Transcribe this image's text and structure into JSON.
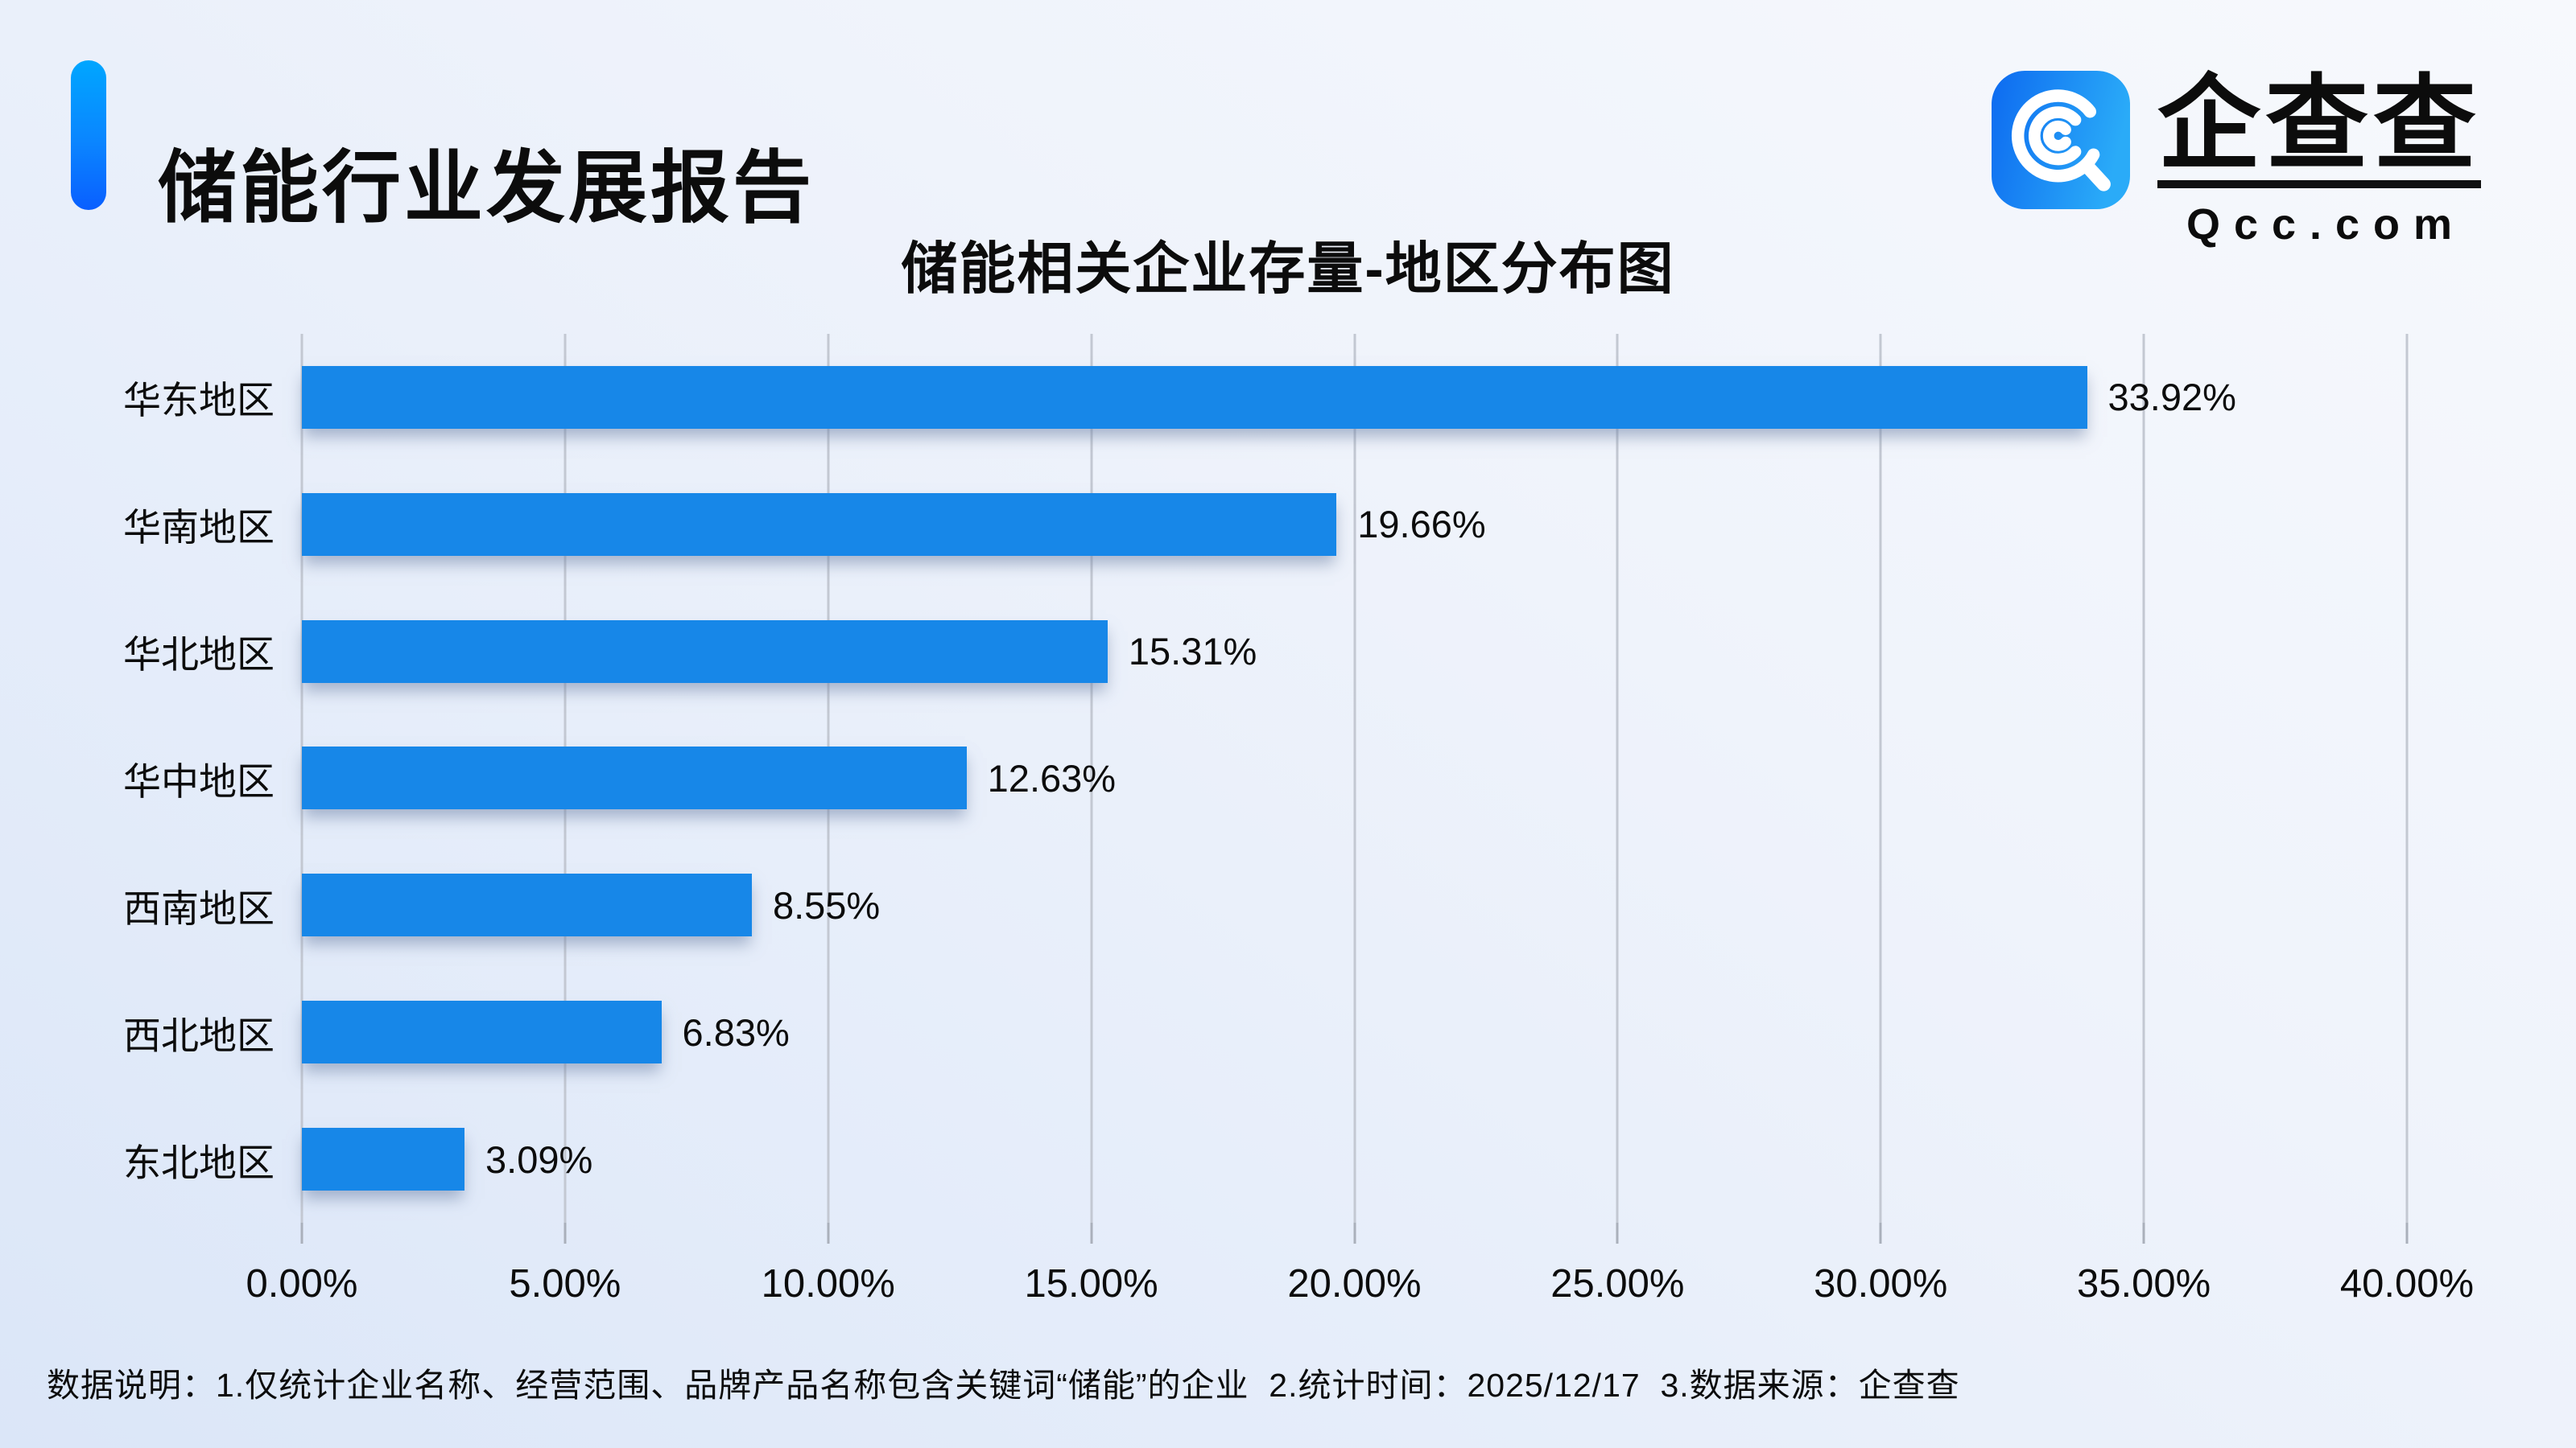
{
  "header": {
    "report_title": "储能行业发展报告"
  },
  "logo": {
    "brand": "企查查",
    "domain": "Qcc.com",
    "icon": "qcc-magnifier-icon"
  },
  "colors": {
    "bar": "#1787e8",
    "accent_top": "#00a6ff",
    "accent_bottom": "#095fff",
    "gridline": "#c3c8d2",
    "background_light": "#f7f9fd",
    "background_dark": "#dbe6f8"
  },
  "chart_data": {
    "type": "bar",
    "orientation": "horizontal",
    "title": "储能相关企业存量-地区分布图",
    "categories": [
      "华东地区",
      "华南地区",
      "华北地区",
      "华中地区",
      "西南地区",
      "西北地区",
      "东北地区"
    ],
    "values": [
      33.92,
      19.66,
      15.31,
      12.63,
      8.55,
      6.83,
      3.09
    ],
    "value_labels": [
      "33.92%",
      "19.66%",
      "15.31%",
      "12.63%",
      "8.55%",
      "6.83%",
      "3.09%"
    ],
    "x_ticks": [
      "0.00%",
      "5.00%",
      "10.00%",
      "15.00%",
      "20.00%",
      "25.00%",
      "30.00%",
      "35.00%",
      "40.00%"
    ],
    "xlim": [
      0,
      40
    ],
    "grid": true,
    "legend": false,
    "xlabel": "",
    "ylabel": ""
  },
  "footnote": "数据说明：1.仅统计企业名称、经营范围、品牌产品名称包含关键词“储能”的企业  2.统计时间：2025/12/17  3.数据来源：企查查"
}
